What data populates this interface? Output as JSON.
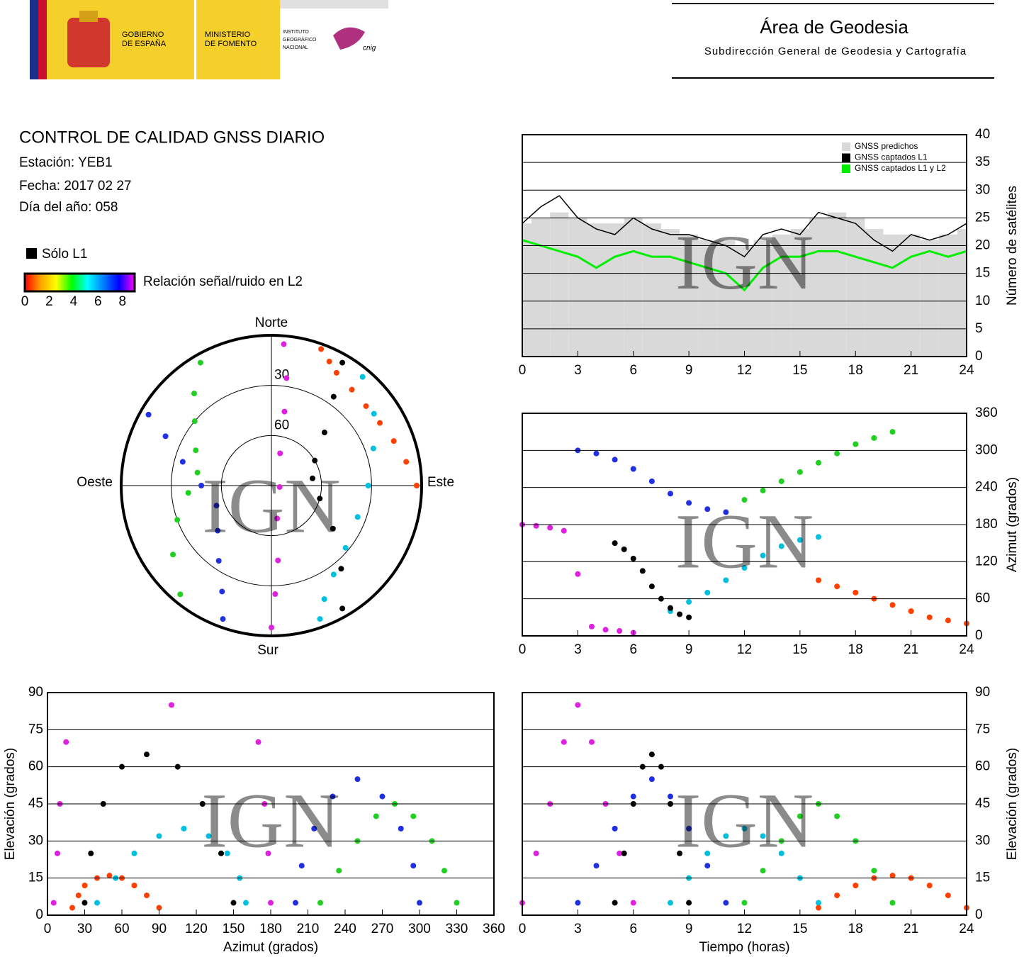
{
  "header": {
    "gov": [
      "GOBIERNO",
      "DE ESPAÑA"
    ],
    "ministry": [
      "MINISTERIO",
      "DE FOMENTO"
    ],
    "institute": [
      "INSTITUTO",
      "GEOGRÁFICO",
      "NACIONAL"
    ],
    "cnig": "cnig",
    "area": "Área de Geodesia",
    "subdirection": "Subdirección General de Geodesia y Cartografía"
  },
  "info": {
    "title": "CONTROL DE CALIDAD GNSS DIARIO",
    "station": "Estación: YEB1",
    "date": "Fecha: 2017 02 27",
    "doy": "Día del año: 058"
  },
  "legend": {
    "solo_l1": "Sólo L1"
  },
  "colorbar": {
    "label": "Relación señal/ruido en L2",
    "lim": [
      0,
      9
    ],
    "ticks": [
      0,
      2,
      4,
      6,
      8
    ],
    "colors": [
      "#ff0000",
      "#ffa000",
      "#ffff00",
      "#00ff00",
      "#00ffff",
      "#0080ff",
      "#0000ff",
      "#ff00ff"
    ]
  },
  "watermark": "IGN",
  "chart_data": [
    {
      "type": "line",
      "y_label": "Número de satélites",
      "y_axis_side": "right",
      "grid": true,
      "x": [
        0,
        1,
        2,
        3,
        4,
        5,
        6,
        7,
        8,
        9,
        10,
        11,
        12,
        13,
        14,
        15,
        16,
        17,
        18,
        19,
        20,
        21,
        22,
        23,
        24
      ],
      "xlim": [
        0,
        24
      ],
      "xticks": [
        0,
        3,
        6,
        9,
        12,
        15,
        18,
        21,
        24
      ],
      "ylim": [
        0,
        40
      ],
      "yticks": [
        0,
        5,
        10,
        15,
        20,
        25,
        30,
        35,
        40
      ],
      "series": [
        {
          "name": "GNSS predichos",
          "color": "#d9d9d9",
          "values": [
            24,
            25,
            26,
            25,
            24,
            24,
            25,
            24,
            23,
            22,
            21,
            21,
            20,
            21,
            22,
            23,
            25,
            26,
            25,
            23,
            22,
            22,
            21,
            22,
            23
          ]
        },
        {
          "name": "GNSS captados L1",
          "color": "#000000",
          "values": [
            24,
            27,
            29,
            25,
            23,
            22,
            25,
            23,
            22,
            22,
            21,
            20,
            18,
            22,
            23,
            22,
            26,
            25,
            24,
            21,
            19,
            22,
            21,
            22,
            24
          ]
        },
        {
          "name": "GNSS captados L1 y L2",
          "color": "#00ee00",
          "values": [
            21,
            20,
            19,
            18,
            16,
            18,
            19,
            18,
            18,
            17,
            16,
            15,
            12,
            16,
            18,
            18,
            19,
            19,
            18,
            17,
            16,
            18,
            19,
            18,
            19
          ]
        }
      ]
    },
    {
      "type": "polar",
      "directions": {
        "north": "Norte",
        "south": "Sur",
        "east": "Este",
        "west": "Oeste"
      },
      "ellim": [
        0,
        90
      ],
      "elticks": [
        30,
        60
      ],
      "series": [
        {
          "color": "#e020e0",
          "az": [
            180,
            178,
            175,
            170,
            100,
            15,
            10,
            8,
            5
          ],
          "el": [
            5,
            25,
            45,
            70,
            85,
            70,
            45,
            25,
            5
          ]
        },
        {
          "color": "#2030e0",
          "az": [
            300,
            295,
            285,
            270,
            250,
            230,
            215,
            205,
            200
          ],
          "el": [
            5,
            20,
            35,
            48,
            55,
            48,
            35,
            20,
            5
          ]
        },
        {
          "color": "#00c0e0",
          "az": [
            40,
            55,
            70,
            90,
            110,
            130,
            145,
            155,
            160
          ],
          "el": [
            5,
            15,
            25,
            32,
            35,
            32,
            25,
            15,
            5
          ]
        },
        {
          "color": "#20d020",
          "az": [
            220,
            235,
            250,
            265,
            280,
            295,
            310,
            320,
            330
          ],
          "el": [
            5,
            18,
            30,
            40,
            45,
            40,
            30,
            18,
            5
          ]
        },
        {
          "color": "#000000",
          "az": [
            150,
            140,
            125,
            105,
            80,
            60,
            45,
            35,
            30
          ],
          "el": [
            5,
            25,
            45,
            60,
            65,
            60,
            45,
            25,
            5
          ]
        },
        {
          "color": "#ff4000",
          "az": [
            90,
            80,
            70,
            60,
            50,
            40,
            30,
            25,
            20
          ],
          "el": [
            3,
            8,
            12,
            15,
            16,
            15,
            12,
            8,
            3
          ]
        }
      ]
    },
    {
      "type": "scatter",
      "y_label": "Azimut (grados)",
      "y_axis_side": "right",
      "grid": true,
      "xlim": [
        0,
        24
      ],
      "xticks": [
        0,
        3,
        6,
        9,
        12,
        15,
        18,
        21,
        24
      ],
      "ylim": [
        0,
        360
      ],
      "yticks": [
        0,
        60,
        120,
        180,
        240,
        300,
        360
      ],
      "series": [
        {
          "color": "#e020e0",
          "x": [
            0,
            0.75,
            1.5,
            2.25,
            3,
            3.75,
            4.5,
            5.25,
            6
          ],
          "y": [
            180,
            178,
            175,
            170,
            100,
            15,
            10,
            8,
            5
          ]
        },
        {
          "color": "#2030e0",
          "x": [
            3,
            4,
            5,
            6,
            7,
            8,
            9,
            10,
            11
          ],
          "y": [
            300,
            295,
            285,
            270,
            250,
            230,
            215,
            205,
            200
          ]
        },
        {
          "color": "#00c0e0",
          "x": [
            8,
            9,
            10,
            11,
            12,
            13,
            14,
            15,
            16
          ],
          "y": [
            40,
            55,
            70,
            90,
            110,
            130,
            145,
            155,
            160
          ]
        },
        {
          "color": "#20d020",
          "x": [
            12,
            13,
            14,
            15,
            16,
            17,
            18,
            19,
            20
          ],
          "y": [
            220,
            235,
            250,
            265,
            280,
            295,
            310,
            320,
            330
          ]
        },
        {
          "color": "#000000",
          "x": [
            5,
            5.5,
            6,
            6.5,
            7,
            7.5,
            8,
            8.5,
            9
          ],
          "y": [
            150,
            140,
            125,
            105,
            80,
            60,
            45,
            35,
            30
          ]
        },
        {
          "color": "#ff4000",
          "x": [
            16,
            17,
            18,
            19,
            20,
            21,
            22,
            23,
            24
          ],
          "y": [
            90,
            80,
            70,
            60,
            50,
            40,
            30,
            25,
            20
          ]
        }
      ]
    },
    {
      "type": "scatter",
      "x_label": "Azimut (grados)",
      "y_label": "Elevación (grados)",
      "y_axis_side": "left",
      "grid": true,
      "xlim": [
        0,
        360
      ],
      "xticks": [
        0,
        30,
        60,
        90,
        120,
        150,
        180,
        210,
        240,
        270,
        300,
        330,
        360
      ],
      "ylim": [
        0,
        90
      ],
      "yticks": [
        0,
        15,
        30,
        45,
        60,
        75,
        90
      ],
      "series": [
        {
          "color": "#e020e0",
          "x": [
            180,
            178,
            175,
            170,
            100,
            15,
            10,
            8,
            5
          ],
          "y": [
            5,
            25,
            45,
            70,
            85,
            70,
            45,
            25,
            5
          ]
        },
        {
          "color": "#2030e0",
          "x": [
            300,
            295,
            285,
            270,
            250,
            230,
            215,
            205,
            200
          ],
          "y": [
            5,
            20,
            35,
            48,
            55,
            48,
            35,
            20,
            5
          ]
        },
        {
          "color": "#00c0e0",
          "x": [
            40,
            55,
            70,
            90,
            110,
            130,
            145,
            155,
            160
          ],
          "y": [
            5,
            15,
            25,
            32,
            35,
            32,
            25,
            15,
            5
          ]
        },
        {
          "color": "#20d020",
          "x": [
            220,
            235,
            250,
            265,
            280,
            295,
            310,
            320,
            330
          ],
          "y": [
            5,
            18,
            30,
            40,
            45,
            40,
            30,
            18,
            5
          ]
        },
        {
          "color": "#000000",
          "x": [
            150,
            140,
            125,
            105,
            80,
            60,
            45,
            35,
            30
          ],
          "y": [
            5,
            25,
            45,
            60,
            65,
            60,
            45,
            25,
            5
          ]
        },
        {
          "color": "#ff4000",
          "x": [
            90,
            80,
            70,
            60,
            50,
            40,
            30,
            25,
            20
          ],
          "y": [
            3,
            8,
            12,
            15,
            16,
            15,
            12,
            8,
            3
          ]
        }
      ]
    },
    {
      "type": "scatter",
      "x_label": "Tiempo (horas)",
      "y_label": "Elevación (grados)",
      "y_axis_side": "right",
      "grid": true,
      "xlim": [
        0,
        24
      ],
      "xticks": [
        0,
        3,
        6,
        9,
        12,
        15,
        18,
        21,
        24
      ],
      "ylim": [
        0,
        90
      ],
      "yticks": [
        0,
        15,
        30,
        45,
        60,
        75,
        90
      ],
      "series": [
        {
          "color": "#e020e0",
          "x": [
            0,
            0.75,
            1.5,
            2.25,
            3,
            3.75,
            4.5,
            5.25,
            6
          ],
          "y": [
            5,
            25,
            45,
            70,
            85,
            70,
            45,
            25,
            5
          ]
        },
        {
          "color": "#2030e0",
          "x": [
            3,
            4,
            5,
            6,
            7,
            8,
            9,
            10,
            11
          ],
          "y": [
            5,
            20,
            35,
            48,
            55,
            48,
            35,
            20,
            5
          ]
        },
        {
          "color": "#00c0e0",
          "x": [
            8,
            9,
            10,
            11,
            12,
            13,
            14,
            15,
            16
          ],
          "y": [
            5,
            15,
            25,
            32,
            35,
            32,
            25,
            15,
            5
          ]
        },
        {
          "color": "#20d020",
          "x": [
            12,
            13,
            14,
            15,
            16,
            17,
            18,
            19,
            20
          ],
          "y": [
            5,
            18,
            30,
            40,
            45,
            40,
            30,
            18,
            5
          ]
        },
        {
          "color": "#000000",
          "x": [
            5,
            5.5,
            6,
            6.5,
            7,
            7.5,
            8,
            8.5,
            9
          ],
          "y": [
            5,
            25,
            45,
            60,
            65,
            60,
            45,
            25,
            5
          ]
        },
        {
          "color": "#ff4000",
          "x": [
            16,
            17,
            18,
            19,
            20,
            21,
            22,
            23,
            24
          ],
          "y": [
            3,
            8,
            12,
            15,
            16,
            15,
            12,
            8,
            3
          ]
        }
      ]
    }
  ]
}
